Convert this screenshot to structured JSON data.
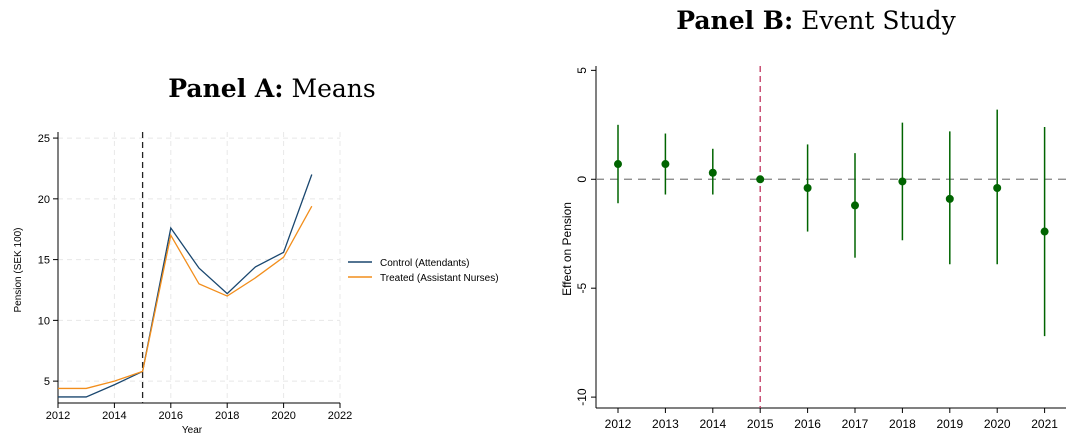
{
  "chart_data": [
    {
      "type": "line",
      "title_bold": "Panel A:",
      "title_rest": "Means",
      "xlabel": "Year",
      "ylabel": "Pension (SEK 100)",
      "xlim": [
        2012,
        2022
      ],
      "ylim": [
        3.2,
        25.5
      ],
      "xticks": [
        2012,
        2014,
        2016,
        2018,
        2020,
        2022
      ],
      "yticks": [
        5,
        10,
        15,
        20,
        25
      ],
      "grid": true,
      "vline": 2015,
      "legend_position": "right",
      "x": [
        2012,
        2013,
        2014,
        2015,
        2016,
        2017,
        2018,
        2019,
        2020,
        2021
      ],
      "series": [
        {
          "name": "Control (Attendants)",
          "color": "#1a476f",
          "values": [
            3.7,
            3.7,
            4.7,
            5.8,
            17.6,
            14.3,
            12.2,
            14.4,
            15.6,
            22.0
          ]
        },
        {
          "name": "Treated (Assistant Nurses)",
          "color": "#f28e1c",
          "values": [
            4.4,
            4.4,
            5.0,
            5.8,
            17.0,
            13.0,
            12.0,
            13.5,
            15.2,
            19.4
          ]
        }
      ]
    },
    {
      "type": "scatter",
      "title_bold": "Panel B:",
      "title_rest": "Event Study",
      "ylabel": "Effect on Pension",
      "xticks": [
        "2012",
        "2013",
        "2014",
        "2015",
        "2016",
        "2017",
        "2018",
        "2019",
        "2020",
        "2021"
      ],
      "yticks": [
        5,
        0,
        -5,
        -10
      ],
      "ylim": [
        -10.5,
        5.2
      ],
      "hline": 0,
      "vline": "2015",
      "point_color": "#006400",
      "vline_color": "#c0345e",
      "points": [
        {
          "x": "2012",
          "y": 0.7,
          "lo": -1.1,
          "hi": 2.5
        },
        {
          "x": "2013",
          "y": 0.7,
          "lo": -0.7,
          "hi": 2.1
        },
        {
          "x": "2014",
          "y": 0.3,
          "lo": -0.7,
          "hi": 1.4
        },
        {
          "x": "2015",
          "y": 0.0,
          "lo": 0.0,
          "hi": 0.0
        },
        {
          "x": "2016",
          "y": -0.4,
          "lo": -2.4,
          "hi": 1.6
        },
        {
          "x": "2017",
          "y": -1.2,
          "lo": -3.6,
          "hi": 1.2
        },
        {
          "x": "2018",
          "y": -0.1,
          "lo": -2.8,
          "hi": 2.6
        },
        {
          "x": "2019",
          "y": -0.9,
          "lo": -3.9,
          "hi": 2.2
        },
        {
          "x": "2020",
          "y": -0.4,
          "lo": -3.9,
          "hi": 3.2
        },
        {
          "x": "2021",
          "y": -2.4,
          "lo": -7.2,
          "hi": 2.4
        }
      ]
    }
  ]
}
